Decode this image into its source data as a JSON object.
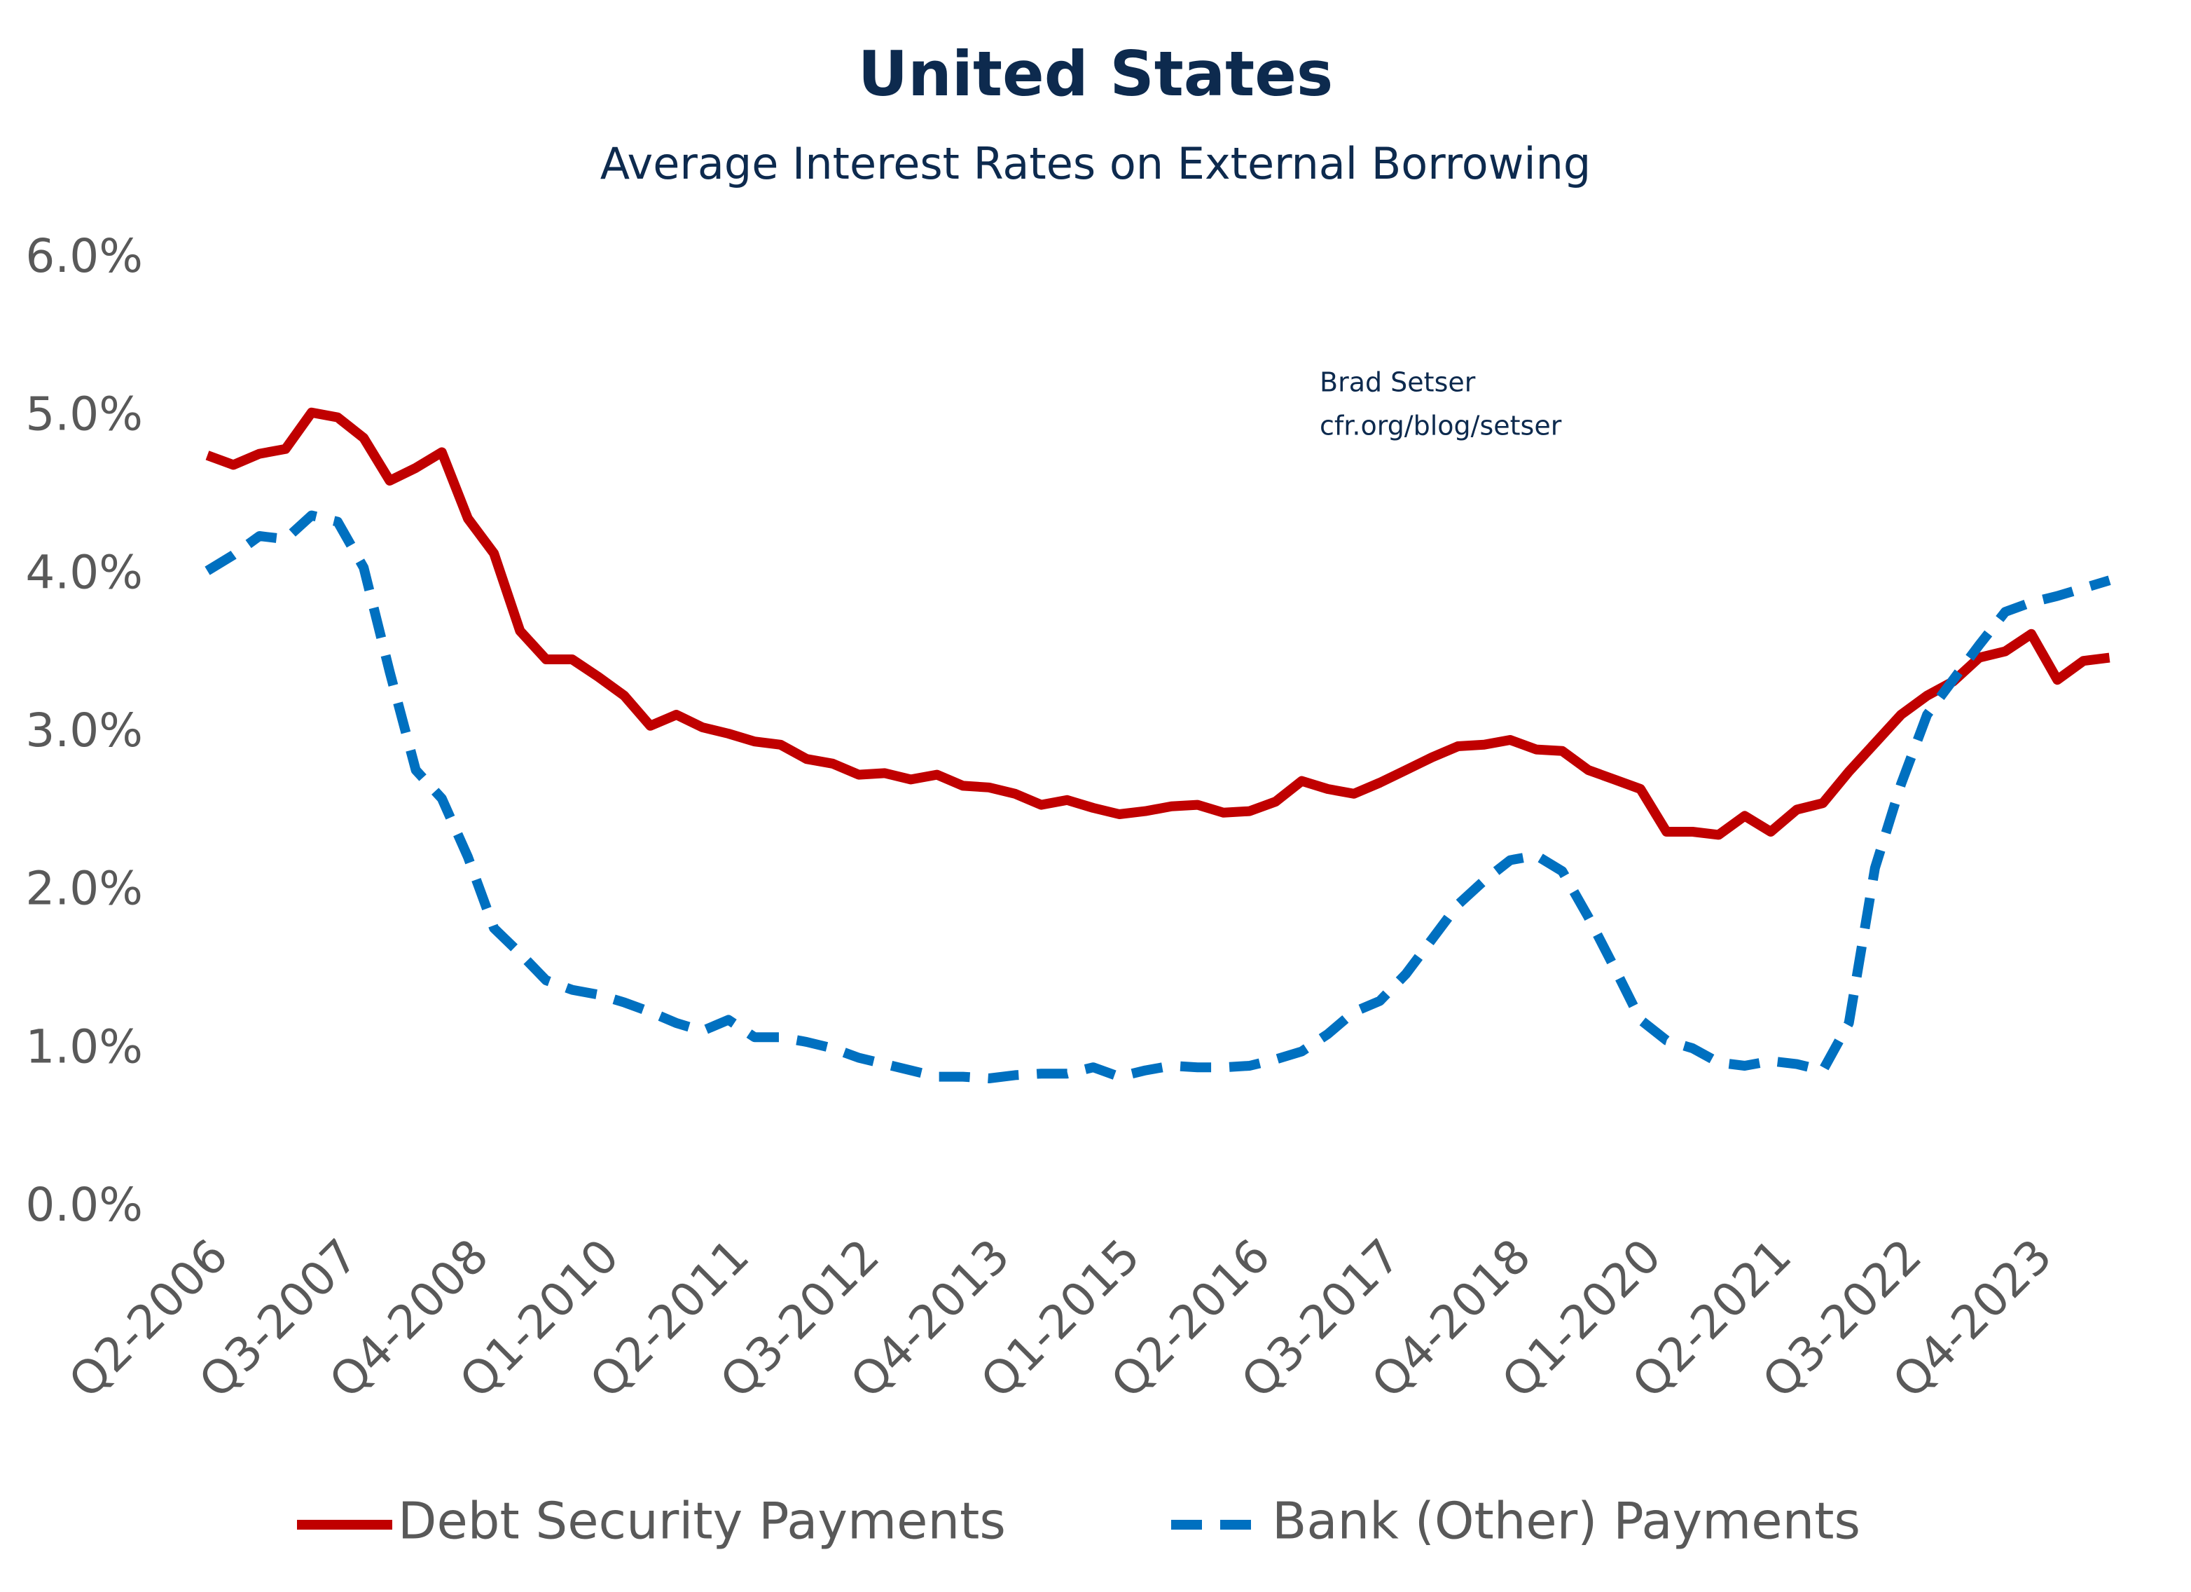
{
  "chart_data": {
    "type": "line",
    "title": "United States",
    "subtitle": "Average Interest Rates on External Borrowing",
    "annotations": [
      "Brad Setser",
      "cfr.org/blog/setser"
    ],
    "categories": [
      "Q2-2006",
      null,
      null,
      null,
      null,
      "Q3-2007",
      null,
      null,
      null,
      null,
      "Q4-2008",
      null,
      null,
      null,
      null,
      "Q1-2010",
      null,
      null,
      null,
      null,
      "Q2-2011",
      null,
      null,
      null,
      null,
      "Q3-2012",
      null,
      null,
      null,
      null,
      "Q4-2013",
      null,
      null,
      null,
      null,
      "Q1-2015",
      null,
      null,
      null,
      null,
      "Q2-2016",
      null,
      null,
      null,
      null,
      "Q3-2017",
      null,
      null,
      null,
      null,
      "Q4-2018",
      null,
      null,
      null,
      null,
      "Q1-2020",
      null,
      null,
      null,
      null,
      "Q2-2021",
      null,
      null,
      null,
      null,
      "Q3-2022",
      null,
      null,
      null,
      null,
      "Q4-2023",
      null,
      null,
      null
    ],
    "series": [
      {
        "name": "Debt Security Payments",
        "color": "#c00000",
        "dash": false,
        "values": [
          4.76,
          4.7,
          4.77,
          4.8,
          5.03,
          5.0,
          4.87,
          4.6,
          4.68,
          4.78,
          4.36,
          4.14,
          3.65,
          3.47,
          3.47,
          3.36,
          3.24,
          3.05,
          3.12,
          3.04,
          3.0,
          2.95,
          2.93,
          2.84,
          2.81,
          2.74,
          2.75,
          2.71,
          2.74,
          2.67,
          2.66,
          2.62,
          2.55,
          2.58,
          2.53,
          2.49,
          2.51,
          2.54,
          2.55,
          2.5,
          2.51,
          2.57,
          2.7,
          2.65,
          2.62,
          2.69,
          2.77,
          2.85,
          2.92,
          2.93,
          2.96,
          2.9,
          2.89,
          2.77,
          2.71,
          2.65,
          2.38,
          2.38,
          2.36,
          2.48,
          2.38,
          2.52,
          2.56,
          2.76,
          2.94,
          3.12,
          3.24,
          3.33,
          3.48,
          3.52,
          3.63,
          3.34,
          3.46,
          3.48
        ]
      },
      {
        "name": "Bank (Other) Payments",
        "color": "#0070c0",
        "dash": true,
        "values": [
          4.03,
          4.13,
          4.25,
          4.23,
          4.38,
          4.34,
          4.05,
          3.39,
          2.77,
          2.59,
          2.22,
          1.77,
          1.61,
          1.44,
          1.38,
          1.35,
          1.3,
          1.24,
          1.17,
          1.12,
          1.19,
          1.08,
          1.08,
          1.05,
          1.01,
          0.95,
          0.91,
          0.87,
          0.83,
          0.83,
          0.82,
          0.84,
          0.85,
          0.85,
          0.89,
          0.83,
          0.87,
          0.9,
          0.89,
          0.89,
          0.9,
          0.94,
          0.99,
          1.1,
          1.24,
          1.31,
          1.48,
          1.7,
          1.92,
          2.07,
          2.2,
          2.23,
          2.13,
          1.84,
          1.52,
          1.19,
          1.06,
          1.01,
          0.92,
          0.9,
          0.93,
          0.91,
          0.87,
          1.17,
          2.15,
          2.68,
          3.12,
          3.34,
          3.56,
          3.77,
          3.83,
          3.87,
          3.92,
          3.97
        ]
      }
    ],
    "ylim": [
      0,
      6
    ],
    "yticks": [
      {
        "value": 0,
        "label": "0.0%"
      },
      {
        "value": 1,
        "label": "1.0%"
      },
      {
        "value": 2,
        "label": "2.0%"
      },
      {
        "value": 3,
        "label": "3.0%"
      },
      {
        "value": 4,
        "label": "4.0%"
      },
      {
        "value": 5,
        "label": "5.0%"
      },
      {
        "value": 6,
        "label": "6.0%"
      }
    ],
    "grid": false,
    "legend": "bottom"
  }
}
